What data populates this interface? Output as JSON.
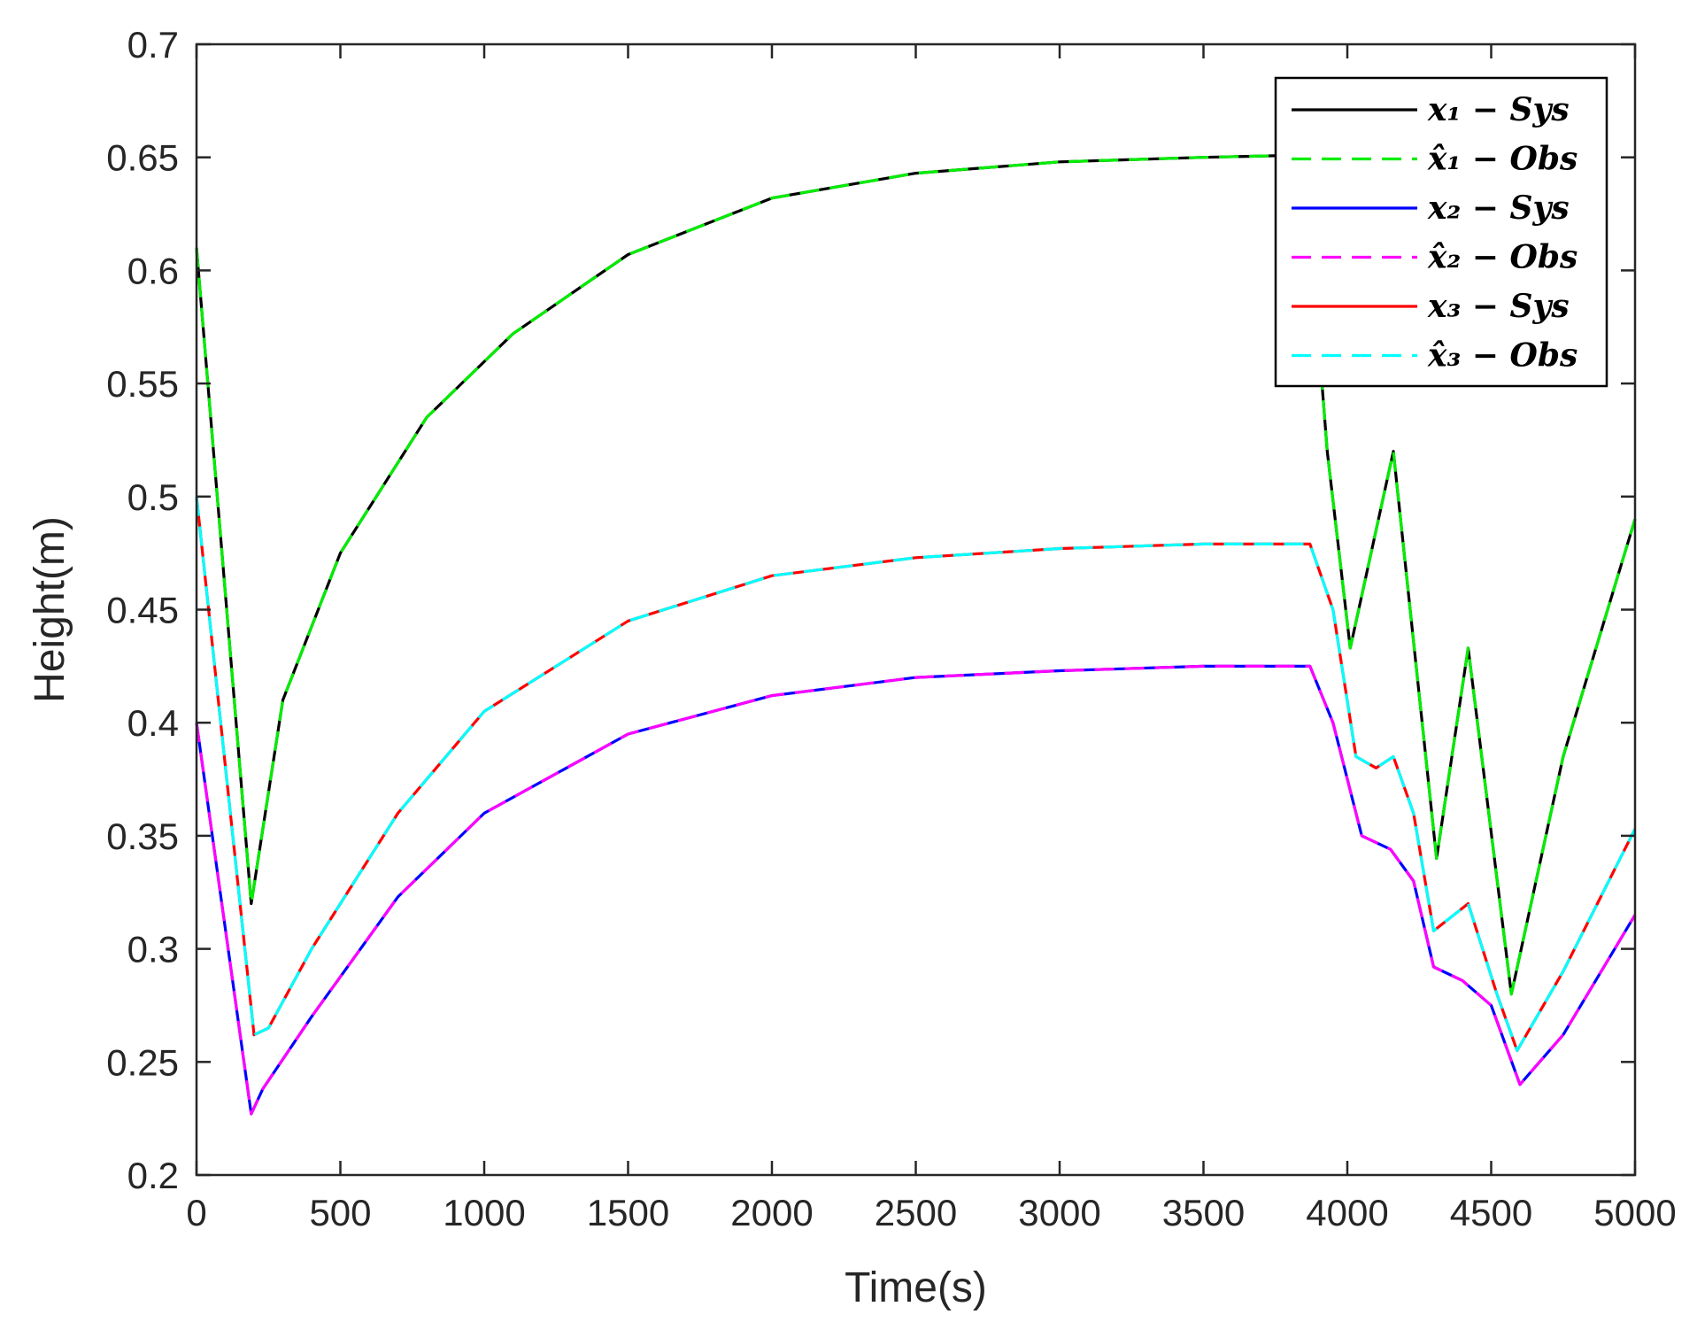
{
  "chart_data": {
    "type": "line",
    "title": "",
    "xlabel": "Time(s)",
    "ylabel": "Height(m)",
    "xlim": [
      0,
      5000
    ],
    "ylim": [
      0.2,
      0.7
    ],
    "x_ticks": [
      "0",
      "500",
      "1000",
      "1500",
      "2000",
      "2500",
      "3000",
      "3500",
      "4000",
      "4500",
      "5000"
    ],
    "y_ticks": [
      "0.2",
      "0.25",
      "0.3",
      "0.35",
      "0.4",
      "0.45",
      "0.5",
      "0.55",
      "0.6",
      "0.65",
      "0.7"
    ],
    "grid": false,
    "legend_position": "top-right",
    "series": [
      {
        "name": "x₁ − Sys",
        "color": "#000000",
        "dash": "solid",
        "x": [
          0,
          190,
          300,
          500,
          800,
          1100,
          1500,
          2000,
          2500,
          3000,
          3500,
          3850,
          3930,
          4010,
          4160,
          4310,
          4420,
          4570,
          4750,
          5000
        ],
        "y": [
          0.61,
          0.32,
          0.41,
          0.475,
          0.535,
          0.572,
          0.607,
          0.632,
          0.643,
          0.648,
          0.65,
          0.651,
          0.52,
          0.433,
          0.52,
          0.34,
          0.433,
          0.28,
          0.385,
          0.49
        ]
      },
      {
        "name": "x̂₁ − Obs",
        "color": "#00ee00",
        "dash": "dashed",
        "x": [
          0,
          190,
          300,
          500,
          800,
          1100,
          1500,
          2000,
          2500,
          3000,
          3500,
          3850,
          3930,
          4010,
          4160,
          4310,
          4420,
          4570,
          4750,
          5000
        ],
        "y": [
          0.61,
          0.32,
          0.41,
          0.475,
          0.535,
          0.572,
          0.607,
          0.632,
          0.643,
          0.648,
          0.65,
          0.651,
          0.52,
          0.433,
          0.52,
          0.34,
          0.433,
          0.28,
          0.385,
          0.49
        ]
      },
      {
        "name": "x₂ − Sys",
        "color": "#0000ff",
        "dash": "solid",
        "x": [
          0,
          190,
          230,
          400,
          700,
          1000,
          1500,
          2000,
          2500,
          3000,
          3500,
          3870,
          3950,
          4050,
          4150,
          4230,
          4300,
          4400,
          4500,
          4600,
          4750,
          5000
        ],
        "y": [
          0.4,
          0.227,
          0.238,
          0.27,
          0.323,
          0.36,
          0.395,
          0.412,
          0.42,
          0.423,
          0.425,
          0.425,
          0.4,
          0.35,
          0.344,
          0.33,
          0.292,
          0.286,
          0.275,
          0.24,
          0.262,
          0.315
        ]
      },
      {
        "name": "x̂₂ − Obs",
        "color": "#ff00ff",
        "dash": "dashed",
        "x": [
          0,
          190,
          230,
          400,
          700,
          1000,
          1500,
          2000,
          2500,
          3000,
          3500,
          3870,
          3950,
          4050,
          4150,
          4230,
          4300,
          4400,
          4500,
          4600,
          4750,
          5000
        ],
        "y": [
          0.4,
          0.227,
          0.238,
          0.27,
          0.323,
          0.36,
          0.395,
          0.412,
          0.42,
          0.423,
          0.425,
          0.425,
          0.4,
          0.35,
          0.344,
          0.33,
          0.292,
          0.286,
          0.275,
          0.24,
          0.262,
          0.315
        ]
      },
      {
        "name": "x₃ − Sys",
        "color": "#ff0000",
        "dash": "solid",
        "x": [
          0,
          200,
          250,
          400,
          700,
          1000,
          1500,
          2000,
          2500,
          3000,
          3500,
          3870,
          3950,
          4030,
          4100,
          4160,
          4230,
          4300,
          4420,
          4520,
          4590,
          4750,
          5000
        ],
        "y": [
          0.5,
          0.262,
          0.265,
          0.3,
          0.36,
          0.405,
          0.445,
          0.465,
          0.473,
          0.477,
          0.479,
          0.479,
          0.45,
          0.385,
          0.38,
          0.385,
          0.36,
          0.308,
          0.32,
          0.28,
          0.255,
          0.29,
          0.353
        ]
      },
      {
        "name": "x̂₃ − Obs",
        "color": "#00ffff",
        "dash": "dashed",
        "x": [
          0,
          200,
          250,
          400,
          700,
          1000,
          1500,
          2000,
          2500,
          3000,
          3500,
          3870,
          3950,
          4030,
          4100,
          4160,
          4230,
          4300,
          4420,
          4520,
          4590,
          4750,
          5000
        ],
        "y": [
          0.5,
          0.262,
          0.265,
          0.3,
          0.36,
          0.405,
          0.445,
          0.465,
          0.473,
          0.477,
          0.479,
          0.479,
          0.45,
          0.385,
          0.38,
          0.385,
          0.36,
          0.308,
          0.32,
          0.28,
          0.255,
          0.29,
          0.353
        ]
      }
    ]
  }
}
